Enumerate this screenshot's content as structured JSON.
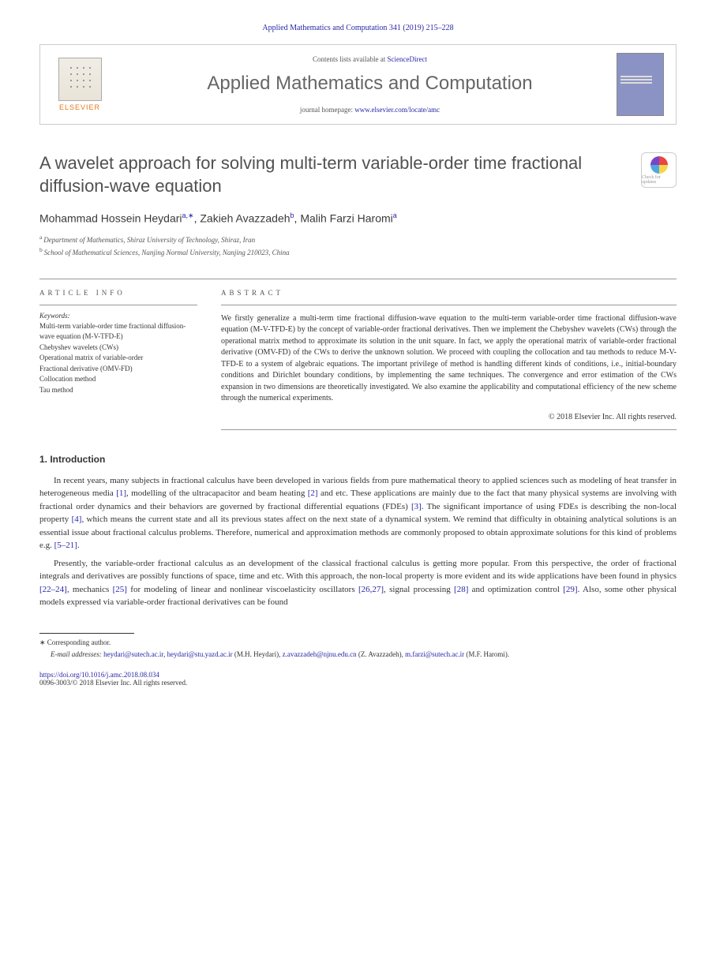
{
  "journal_ref": "Applied Mathematics and Computation 341 (2019) 215–228",
  "header": {
    "contents_prefix": "Contents lists available at ",
    "contents_link": "ScienceDirect",
    "journal_name": "Applied Mathematics and Computation",
    "homepage_prefix": "journal homepage: ",
    "homepage_url": "www.elsevier.com/locate/amc",
    "elsevier": "ELSEVIER"
  },
  "crossmark": "Check for updates",
  "title": "A wavelet approach for solving multi-term variable-order time fractional diffusion-wave equation",
  "authors_html": "Mohammad Hossein Heydari|a,*|, Zakieh Avazzadeh|b|, Malih Farzi Haromi|a",
  "authors": [
    {
      "name": "Mohammad Hossein Heydari",
      "sup": "a,∗"
    },
    {
      "name": "Zakieh Avazzadeh",
      "sup": "b"
    },
    {
      "name": "Malih Farzi Haromi",
      "sup": "a"
    }
  ],
  "affiliations": [
    {
      "sup": "a",
      "text": "Department of Mathematics, Shiraz University of Technology, Shiraz, Iran"
    },
    {
      "sup": "b",
      "text": "School of Mathematical Sciences, Nanjing Normal University, Nanjing 210023, China"
    }
  ],
  "info_label": "ARTICLE INFO",
  "abstract_label": "ABSTRACT",
  "keywords_label": "Keywords:",
  "keywords": [
    "Multi-term variable-order time fractional diffusion-wave equation (M-V-TFD-E)",
    "Chebyshev wavelets (CWs)",
    "Operational matrix of variable-order",
    "Fractional derivative (OMV-FD)",
    "Collocation method",
    "Tau method"
  ],
  "abstract": "We firstly generalize a multi-term time fractional diffusion-wave equation to the multi-term variable-order time fractional diffusion-wave equation (M-V-TFD-E) by the concept of variable-order fractional derivatives. Then we implement the Chebyshev wavelets (CWs) through the operational matrix method to approximate its solution in the unit square. In fact, we apply the operational matrix of variable-order fractional derivative (OMV-FD) of the CWs to derive the unknown solution. We proceed with coupling the collocation and tau methods to reduce M-V-TFD-E to a system of algebraic equations. The important privilege of method is handling different kinds of conditions, i.e., initial-boundary conditions and Dirichlet boundary conditions, by implementing the same techniques. The convergence and error estimation of the CWs expansion in two dimensions are theoretically investigated. We also examine the applicability and computational efficiency of the new scheme through the numerical experiments.",
  "copyright": "© 2018 Elsevier Inc. All rights reserved.",
  "section1_heading": "1. Introduction",
  "para1_pre": "In recent years, many subjects in fractional calculus have been developed in various fields from pure mathematical theory to applied sciences such as modeling of heat transfer in heterogeneous media ",
  "para1_ref1": "[1]",
  "para1_mid1": ", modelling of the ultracapacitor and beam heating ",
  "para1_ref2": "[2]",
  "para1_mid2": " and etc. These applications are mainly due to the fact that many physical systems are involving with fractional order dynamics and their behaviors are governed by fractional differential equations (FDEs) ",
  "para1_ref3": "[3]",
  "para1_mid3": ". The significant importance of using FDEs is describing the non-local property ",
  "para1_ref4": "[4]",
  "para1_mid4": ", which means the current state and all its previous states affect on the next state of a dynamical system. We remind that difficulty in obtaining analytical solutions is an essential issue about fractional calculus problems. Therefore, numerical and approximation methods are commonly proposed to obtain approximate solutions for this kind of problems e.g. ",
  "para1_ref5": "[5–21]",
  "para1_end": ".",
  "para2_pre": "Presently, the variable-order fractional calculus as an development of the classical fractional calculus is getting more popular. From this perspective, the order of fractional integrals and derivatives are possibly functions of space, time and etc. With this approach, the non-local property is more evident and its wide applications have been found in physics ",
  "para2_ref1": "[22–24]",
  "para2_mid1": ", mechanics ",
  "para2_ref2": "[25]",
  "para2_mid2": " for modeling of linear and nonlinear viscoelasticity oscillators ",
  "para2_ref3": "[26,27]",
  "para2_mid3": ", signal processing ",
  "para2_ref4": "[28]",
  "para2_mid4": " and optimization control ",
  "para2_ref5": "[29]",
  "para2_end": ". Also, some other physical models expressed via variable-order fractional derivatives can be found",
  "corresponding_label": "∗ Corresponding author.",
  "email_label": "E-mail addresses:",
  "emails": [
    {
      "addr": "heydari@sutech.ac.ir",
      "who": ""
    },
    {
      "addr": "heydari@stu.yazd.ac.ir",
      "who": " (M.H. Heydari), "
    },
    {
      "addr": "z.avazzadeh@njnu.edu.cn",
      "who": " (Z. Avazzadeh), "
    },
    {
      "addr": "m.farzi@sutech.ac.ir",
      "who": " (M.F. Haromi)."
    }
  ],
  "doi_url": "https://doi.org/10.1016/j.amc.2018.08.034",
  "issn_line": "0096-3003/© 2018 Elsevier Inc. All rights reserved.",
  "colors": {
    "link": "#2727a8",
    "elsevier_orange": "#e67817",
    "title_gray": "#505050",
    "cover_bg": "#8b93c4"
  }
}
